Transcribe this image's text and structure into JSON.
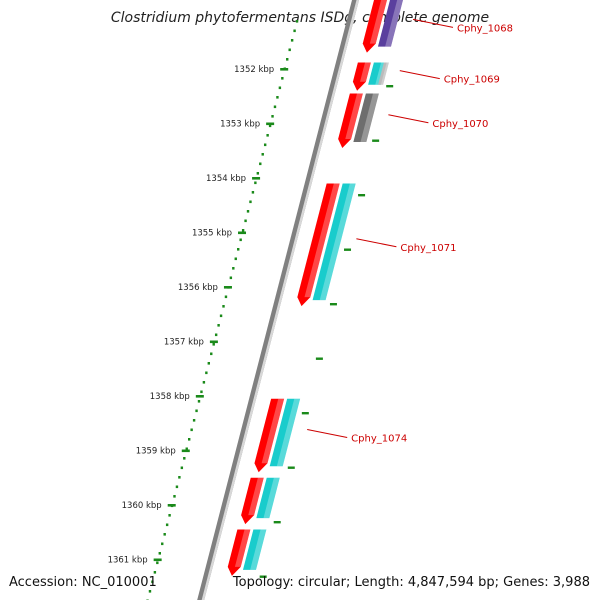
{
  "title": "Clostridium phytofermentans ISDg, complete genome",
  "accession": "Accession: NC_010001",
  "topology": "Topology: circular; Length: 4,847,594 bp; Genes: 3,988",
  "colors": {
    "backbone": "#808080",
    "tick": "#1a8a1a",
    "gene_label": "#cc0000",
    "gene_red": "#ff0000",
    "gene_purple": "#5a3f9e",
    "gene_cyan": "#19cccc",
    "gene_gray": "#6e6e6e",
    "gene_lightgray": "#bbbbbb"
  },
  "ticks": [
    {
      "kbp": 1352,
      "label": "1352 kbp"
    },
    {
      "kbp": 1353,
      "label": "1353 kbp"
    },
    {
      "kbp": 1354,
      "label": "1354 kbp"
    },
    {
      "kbp": 1355,
      "label": "1355 kbp"
    },
    {
      "kbp": 1356,
      "label": "1356 kbp"
    },
    {
      "kbp": 1357,
      "label": "1357 kbp"
    },
    {
      "kbp": 1358,
      "label": "1358 kbp"
    },
    {
      "kbp": 1359,
      "label": "1359 kbp"
    },
    {
      "kbp": 1360,
      "label": "1360 kbp"
    },
    {
      "kbp": 1361,
      "label": "1361 kbp"
    }
  ],
  "genes": [
    {
      "label": "Cphy_1068",
      "start_kbp": 1350.7,
      "end_kbp": 1351.7,
      "outer_color": "gene_red",
      "inner_color": "gene_purple",
      "labelled": true
    },
    {
      "label": "Cphy_1069",
      "start_kbp": 1351.88,
      "end_kbp": 1352.4,
      "outer_color": "gene_red",
      "inner_color": "gene_cyan",
      "labelled": true
    },
    {
      "label": "Cphy_1070",
      "start_kbp": 1352.45,
      "end_kbp": 1353.45,
      "outer_color": "gene_red",
      "inner_color": "gene_gray",
      "labelled": true
    },
    {
      "label": "Cphy_1071",
      "start_kbp": 1354.1,
      "end_kbp": 1356.35,
      "outer_color": "gene_red",
      "inner_color": "gene_cyan",
      "labelled": true
    },
    {
      "label": "Cphy_1074",
      "start_kbp": 1358.05,
      "end_kbp": 1359.4,
      "outer_color": "gene_red",
      "inner_color": "gene_cyan",
      "labelled": true
    },
    {
      "label": "",
      "start_kbp": 1359.5,
      "end_kbp": 1360.35,
      "outer_color": "gene_red",
      "inner_color": "gene_cyan",
      "labelled": false
    },
    {
      "label": "",
      "start_kbp": 1360.45,
      "end_kbp": 1361.3,
      "outer_color": "gene_red",
      "inner_color": "gene_cyan",
      "labelled": false
    }
  ]
}
